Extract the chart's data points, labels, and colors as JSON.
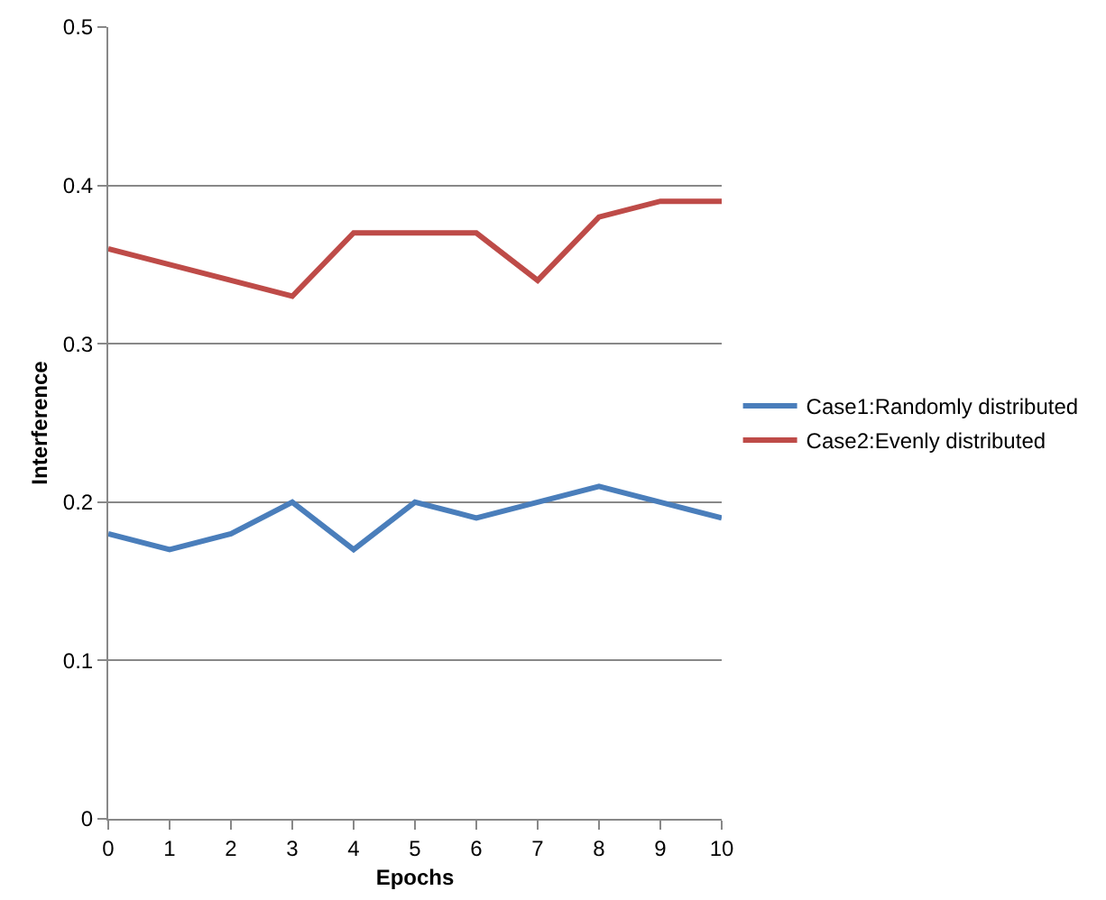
{
  "chart_data": {
    "type": "line",
    "xlabel": "Epochs",
    "ylabel": "Interference",
    "x": [
      0,
      1,
      2,
      3,
      4,
      5,
      6,
      7,
      8,
      9,
      10
    ],
    "series": [
      {
        "name": "Case1:Randomly distributed",
        "color": "#4a7ebb",
        "values": [
          0.18,
          0.17,
          0.18,
          0.2,
          0.17,
          0.2,
          0.19,
          0.2,
          0.21,
          0.2,
          0.19
        ]
      },
      {
        "name": "Case2:Evenly distributed",
        "color": "#be4b48",
        "values": [
          0.36,
          0.35,
          0.34,
          0.33,
          0.37,
          0.37,
          0.37,
          0.34,
          0.38,
          0.39,
          0.39
        ]
      }
    ],
    "xlim": [
      0,
      10
    ],
    "xticks": [
      0,
      1,
      2,
      3,
      4,
      5,
      6,
      7,
      8,
      9,
      10
    ],
    "ylim": [
      0,
      0.5
    ],
    "yticks": [
      {
        "value": 0,
        "label": "0"
      },
      0.1,
      0.2,
      0.3,
      0.4,
      0.5
    ],
    "grid": "y",
    "legend": "right",
    "marker": "none",
    "line_style": "solid"
  }
}
